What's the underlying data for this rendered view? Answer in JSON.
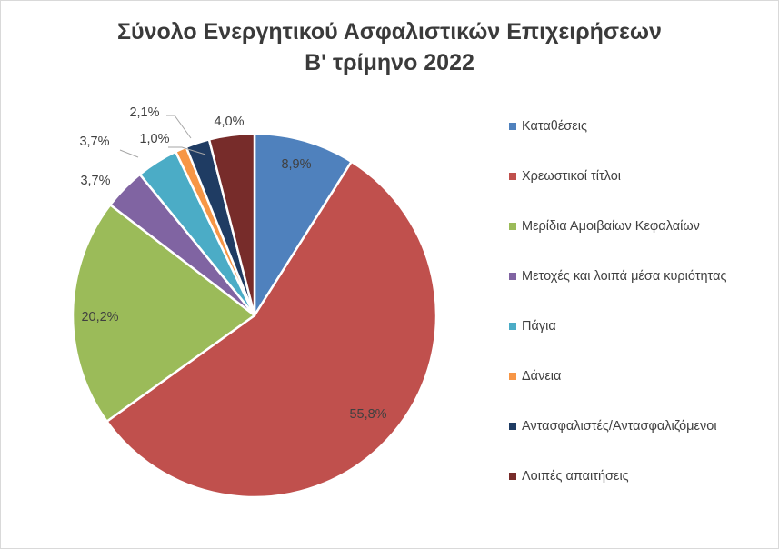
{
  "chart_data": {
    "type": "pie",
    "title_lines": [
      "Σύνολο Ενεργητικού Ασφαλιστικών Επιχειρήσεων",
      "Β' τρίμηνο 2022"
    ],
    "legend_position": "right",
    "slices": [
      {
        "label": "Καταθέσεις",
        "value": 8.9,
        "display": "8,9%",
        "color": "#4f81bd"
      },
      {
        "label": "Χρεωστικοί τίτλοι",
        "value": 55.8,
        "display": "55,8%",
        "color": "#c0504d"
      },
      {
        "label": "Μερίδια Αμοιβαίων Κεφαλαίων",
        "value": 20.2,
        "display": "20,2%",
        "color": "#9bbb59"
      },
      {
        "label": "Μετοχές και λοιπά μέσα κυριότητας",
        "value": 3.7,
        "display": "3,7%",
        "color": "#8064a2"
      },
      {
        "label": "Πάγια",
        "value": 3.7,
        "display": "3,7%",
        "color": "#4bacc6"
      },
      {
        "label": "Δάνεια",
        "value": 1.0,
        "display": "1,0%",
        "color": "#f79646"
      },
      {
        "label": "Αντασφαλιστές/Αντασφαλιζόμενοι",
        "value": 2.1,
        "display": "2,1%",
        "color": "#1f3c63"
      },
      {
        "label": "Λοιπές απαιτήσεις",
        "value": 4.0,
        "display": "4,0%",
        "color": "#772c2a"
      }
    ]
  }
}
